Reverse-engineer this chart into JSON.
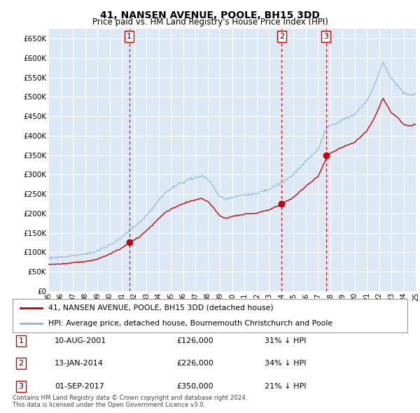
{
  "title": "41, NANSEN AVENUE, POOLE, BH15 3DD",
  "subtitle": "Price paid vs. HM Land Registry's House Price Index (HPI)",
  "ylim": [
    0,
    675000
  ],
  "yticks": [
    0,
    50000,
    100000,
    150000,
    200000,
    250000,
    300000,
    350000,
    400000,
    450000,
    500000,
    550000,
    600000,
    650000
  ],
  "background_color": "#dce9f5",
  "grid_color": "#ffffff",
  "sale_color": "#cc0000",
  "hpi_color": "#89b8d4",
  "vline_color": "#cc0000",
  "transactions": [
    {
      "label": "1",
      "date_num": 2001.61,
      "price": 126000,
      "date_str": "10-AUG-2001",
      "pct": "31% ↓ HPI"
    },
    {
      "label": "2",
      "date_num": 2014.04,
      "price": 226000,
      "date_str": "13-JAN-2014",
      "pct": "34% ↓ HPI"
    },
    {
      "label": "3",
      "date_num": 2017.67,
      "price": 350000,
      "date_str": "01-SEP-2017",
      "pct": "21% ↓ HPI"
    }
  ],
  "legend_sale_label": "41, NANSEN AVENUE, POOLE, BH15 3DD (detached house)",
  "legend_hpi_label": "HPI: Average price, detached house, Bournemouth Christchurch and Poole",
  "footnote": "Contains HM Land Registry data © Crown copyright and database right 2024.\nThis data is licensed under the Open Government Licence v3.0.",
  "table_rows": [
    [
      "1",
      "10-AUG-2001",
      "£126,000",
      "31% ↓ HPI"
    ],
    [
      "2",
      "13-JAN-2014",
      "£226,000",
      "34% ↓ HPI"
    ],
    [
      "3",
      "01-SEP-2017",
      "£350,000",
      "21% ↓ HPI"
    ]
  ]
}
